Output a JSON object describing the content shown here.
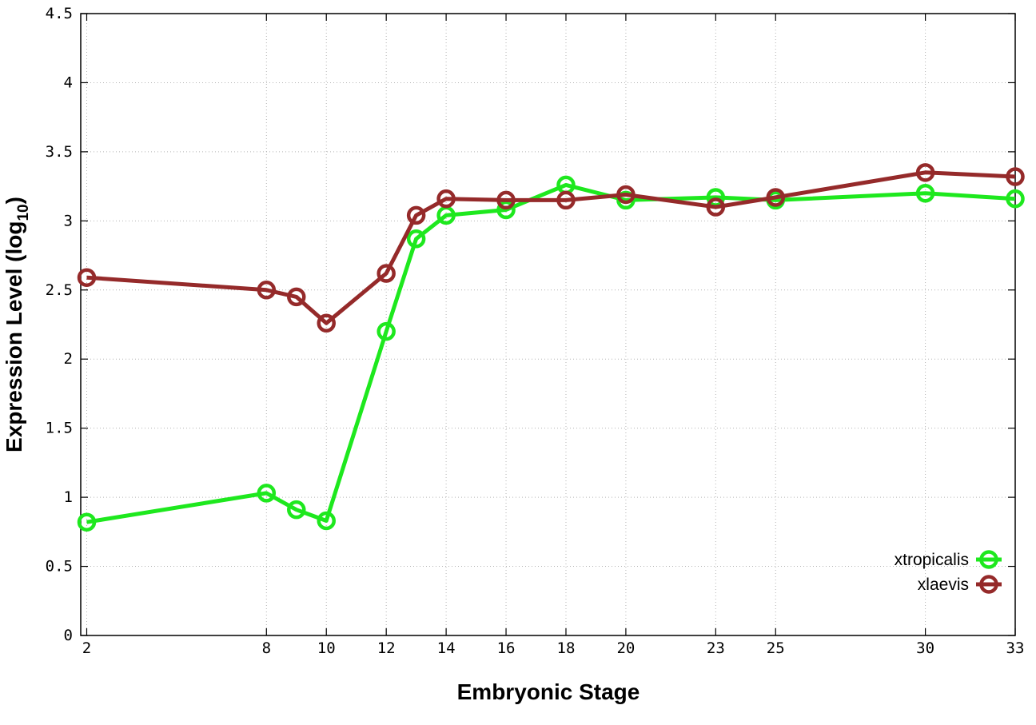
{
  "chart_data": {
    "type": "line",
    "xlabel": "Embryonic Stage",
    "ylabel_main": "Expression Level (log",
    "ylabel_sub": "10",
    "ylabel_close": ")",
    "x_ticks": [
      "2",
      "8",
      "10",
      "12",
      "14",
      "16",
      "18",
      "20",
      "23",
      "25",
      "30",
      "33"
    ],
    "y_ticks": [
      "0",
      "0.5",
      "1",
      "1.5",
      "2",
      "2.5",
      "3",
      "3.5",
      "4",
      "4.5"
    ],
    "xlim": [
      1.8,
      33
    ],
    "ylim": [
      0,
      4.5
    ],
    "grid": true,
    "legend_placement": "bottom-right",
    "series": [
      {
        "name": "xtropicalis",
        "color": "#1ee81e",
        "points": [
          [
            2,
            0.82
          ],
          [
            8,
            1.03
          ],
          [
            9,
            0.91
          ],
          [
            10,
            0.83
          ],
          [
            12,
            2.2
          ],
          [
            13,
            2.87
          ],
          [
            14,
            3.04
          ],
          [
            16,
            3.08
          ],
          [
            18,
            3.26
          ],
          [
            20,
            3.15
          ],
          [
            23,
            3.17
          ],
          [
            25,
            3.15
          ],
          [
            30,
            3.2
          ],
          [
            33,
            3.16
          ]
        ]
      },
      {
        "name": "xlaevis",
        "color": "#952a2a",
        "points": [
          [
            2,
            2.59
          ],
          [
            8,
            2.5
          ],
          [
            9,
            2.45
          ],
          [
            10,
            2.26
          ],
          [
            12,
            2.62
          ],
          [
            13,
            3.04
          ],
          [
            14,
            3.16
          ],
          [
            16,
            3.15
          ],
          [
            18,
            3.15
          ],
          [
            20,
            3.19
          ],
          [
            23,
            3.1
          ],
          [
            25,
            3.17
          ],
          [
            30,
            3.35
          ],
          [
            33,
            3.32
          ]
        ]
      }
    ]
  }
}
